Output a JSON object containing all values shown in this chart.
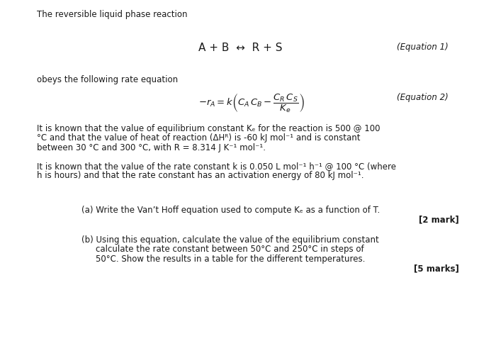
{
  "bg_color": "#ffffff",
  "title_text": "The reversible liquid phase reaction",
  "equation1_text": "A + B  ↔  R + S",
  "equation1_label": "(Equation 1)",
  "obeys_text": "obeys the following rate equation",
  "equation2_label": "(Equation 2)",
  "para1_line1": "It is known that the value of equilibrium constant Kₑ for the reaction is 500 @ 100",
  "para1_line2": "°C and that the value of heat of reaction (ΔHᴿ) is -60 kJ mol⁻¹ and is constant",
  "para1_line3": "between 30 °C and 300 °C, with R = 8.314 J K⁻¹ mol⁻¹.",
  "para2_line1": "It is known that the value of the rate constant k is 0.050 L mol⁻¹ h⁻¹ @ 100 °C (where",
  "para2_line2": "h is hours) and that the rate constant has an activation energy of 80 kJ mol⁻¹.",
  "qa_text": "(a) Write the Van’t Hoff equation used to compute Kₑ as a function of T.",
  "qa_mark": "[2 mark]",
  "qb_text1": "(b) Using this equation, calculate the value of the equilibrium constant",
  "qb_text2": "calculate the rate constant between 50°C and 250°C in steps of",
  "qb_text3": "50°C. Show the results in a table for the different temperatures.",
  "qb_mark": "[5 marks]",
  "base_fontsize": 8.5,
  "eq1_fontsize": 11.0,
  "eq2_fontsize": 9.5
}
